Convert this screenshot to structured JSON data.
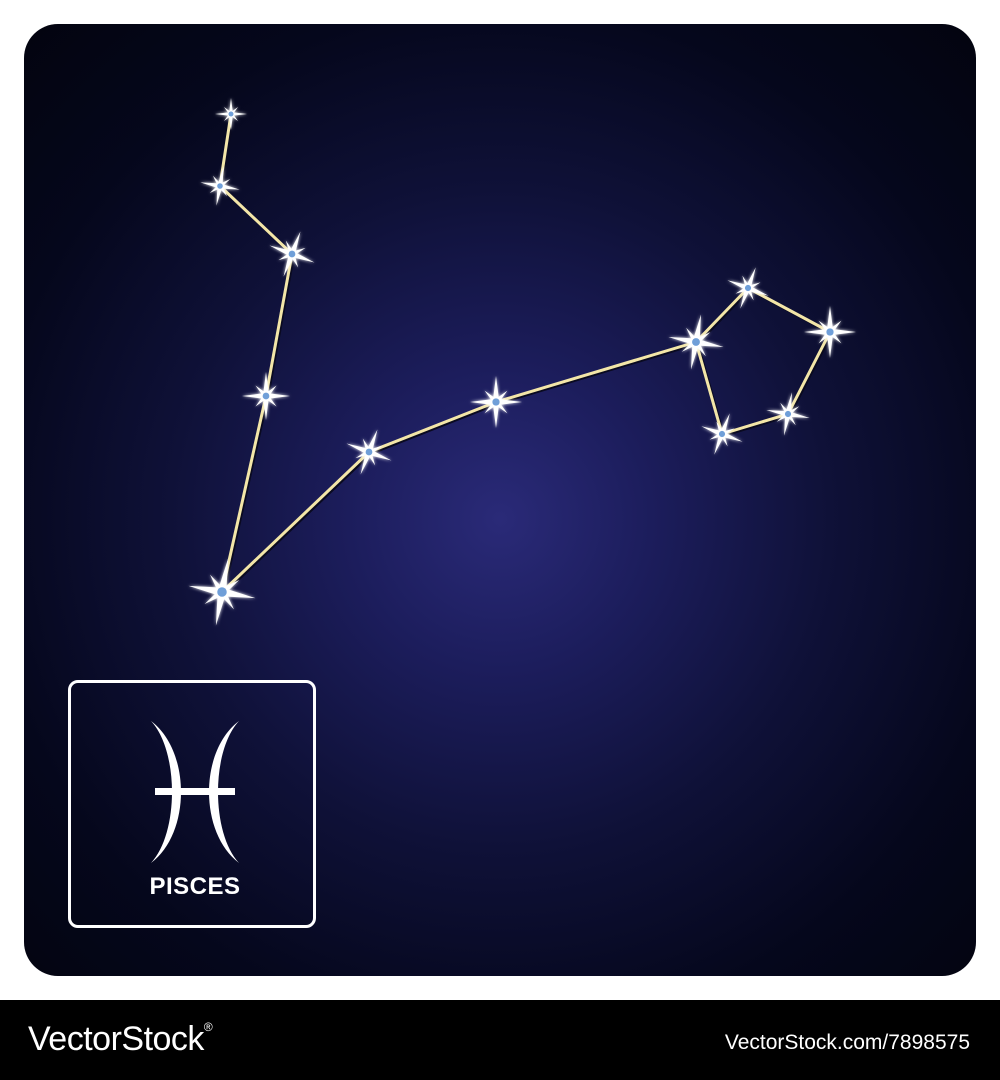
{
  "constellation": {
    "name": "PISCES",
    "line_color": "#f3e6a8",
    "star_color": "#ffffff",
    "star_center_color": "#6f9fd8"
  },
  "card": {
    "background_center": "#2a2a78",
    "background_edge": "#03040f"
  },
  "sign": {
    "symbol": "pisces-symbol",
    "label": "PISCES"
  },
  "footer": {
    "brand": "VectorStock",
    "brand_mark": "®",
    "url": "VectorStock.com/7898575"
  }
}
